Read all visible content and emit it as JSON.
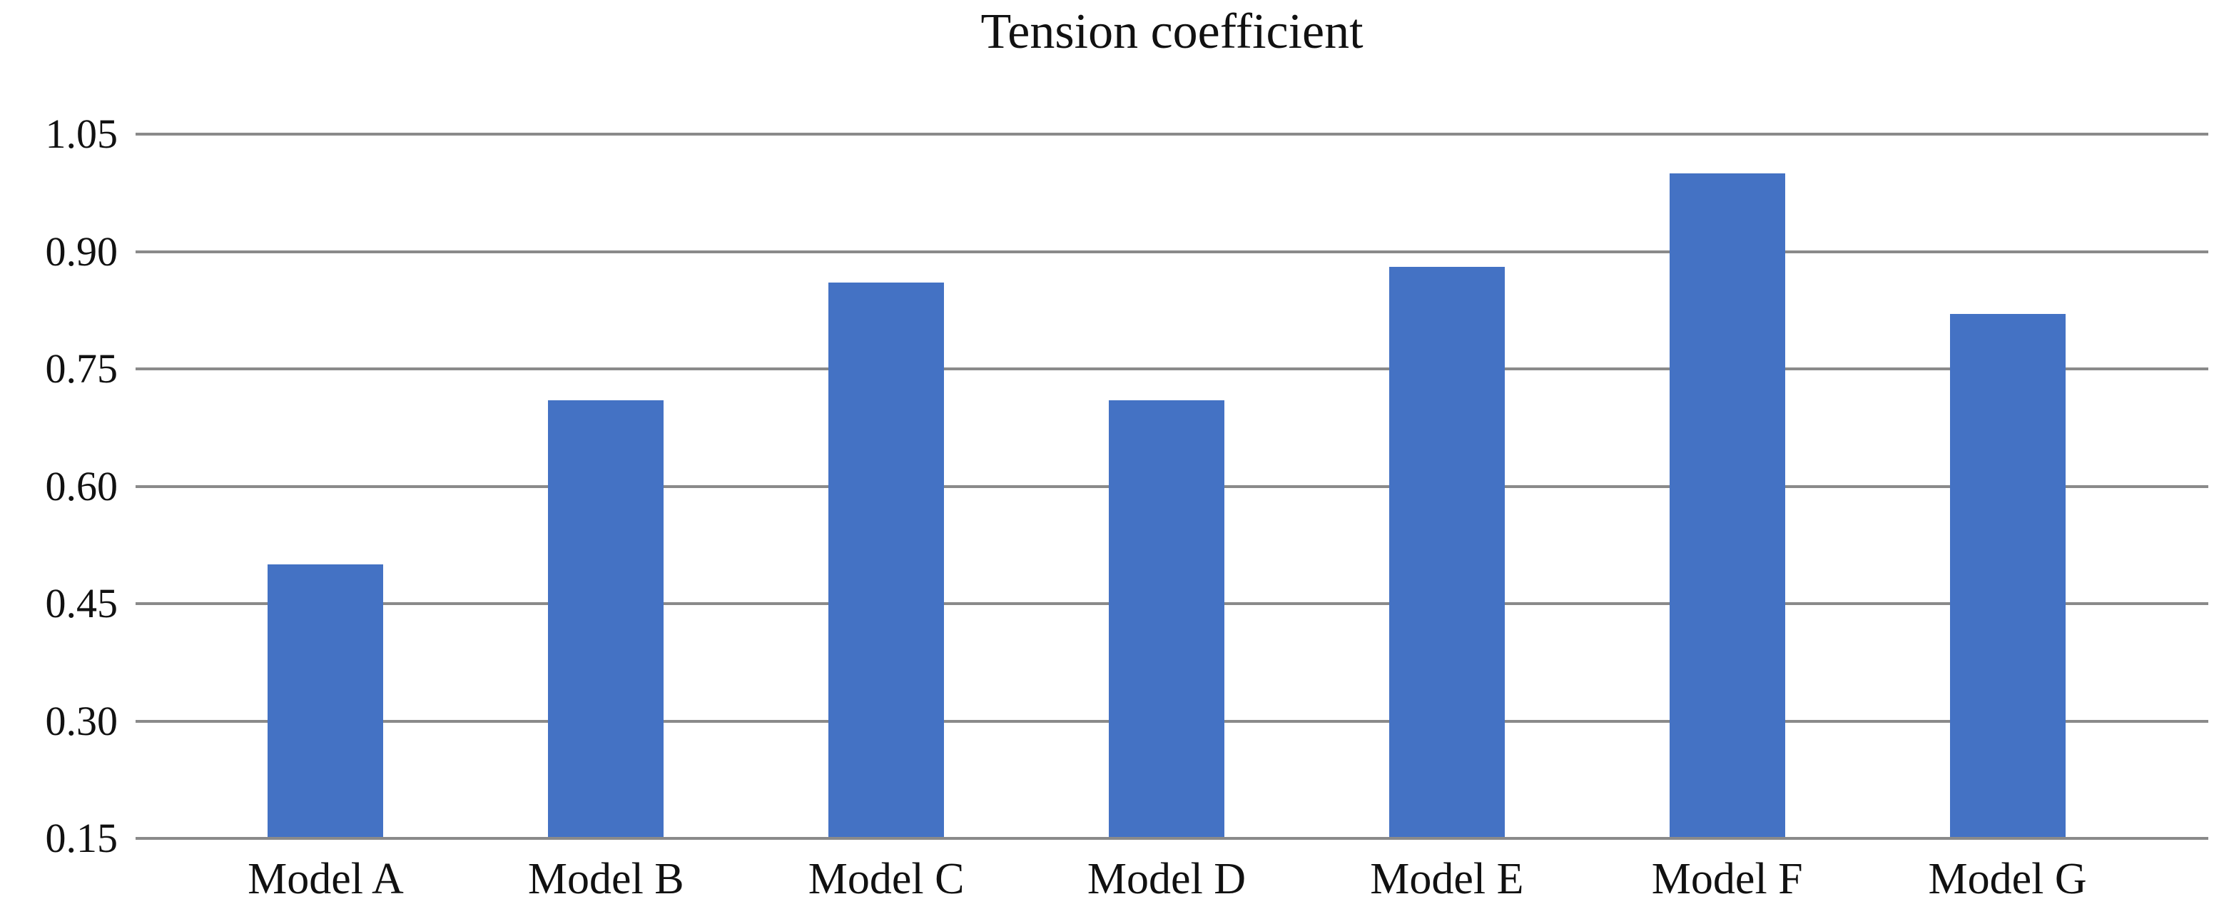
{
  "chart_data": {
    "type": "bar",
    "title": "Tension coefficient",
    "categories": [
      "Model A",
      "Model B",
      "Model C",
      "Model D",
      "Model E",
      "Model F",
      "Model G"
    ],
    "values": [
      0.5,
      0.71,
      0.86,
      0.71,
      0.88,
      1.0,
      0.82
    ],
    "xlabel": "",
    "ylabel": "",
    "ylim": [
      0.15,
      1.05
    ],
    "yticks": [
      1.05,
      0.9,
      0.75,
      0.6,
      0.45,
      0.3,
      0.15
    ],
    "ytick_labels": [
      "1.05",
      "0.90",
      "0.75",
      "0.60",
      "0.45",
      "0.30",
      "0.15"
    ],
    "grid": true,
    "legend": false,
    "bar_color": "#4472C4",
    "gridline_color": "#8a8a8a",
    "text_color": "#111111",
    "background_color": "#ffffff"
  }
}
